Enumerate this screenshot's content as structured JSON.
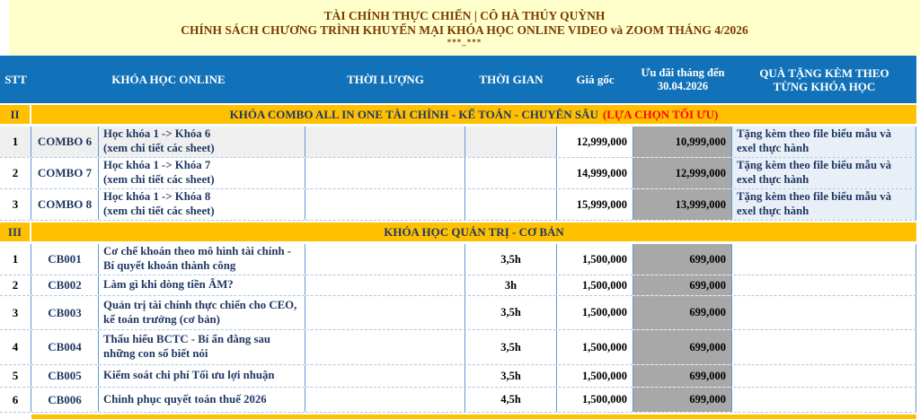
{
  "colors": {
    "band_cream": "#FFFFCC",
    "title_maroon": "#7C3A00",
    "header_blue": "#1172B9",
    "section_orange": "#FFC000",
    "discount_gray": "#A8A8A8",
    "navy_text": "#1F3864",
    "red_highlight": "#FF0000",
    "stripe_gray": "#EFEFEF",
    "gift_blue": "#E9EFF7",
    "grid_blue": "#5B9BD5"
  },
  "band": {
    "line1": "TÀI CHÍNH THỰC CHIẾN | CÔ HÀ THÚY QUỲNH",
    "line2": "CHÍNH SÁCH CHƯƠNG TRÌNH KHUYẾN MẠI KHÓA HỌC ONLINE VIDEO và ZOOM THÁNG 4/2026",
    "line3": "***_***"
  },
  "table": {
    "columns": {
      "stt": "STT",
      "khoa_hoc_online": "KHÓA HỌC ONLINE",
      "thoi_luong": "THỜI LƯỢNG",
      "thoi_gian": "THỜI GIAN",
      "gia_goc": "Giá gốc",
      "uu_dai_line1": "Ưu đãi tháng đến",
      "uu_dai_line2": "30.04.2026",
      "qua_tang_line1": "QUÀ TẶNG KÈM THEO",
      "qua_tang_line2": "TỪNG KHÓA HỌC"
    },
    "section_combo": {
      "stt": "II",
      "title": "KHÓA COMBO ALL IN ONE TÀI CHÍNH - KẾ TOÁN - CHUYÊN SÂU",
      "highlight": "(LỰA CHỌN TỐI ƯU)",
      "rows": [
        {
          "stt": "1",
          "code": "COMBO 6",
          "desc1": "Học khóa 1 -> Khóa 6",
          "desc2": "(xem chi tiết các sheet)",
          "gia_goc": "12,999,000",
          "uu_dai": "10,999,000",
          "gift": "Tặng kèm theo file biểu mẫu và exel thực hành"
        },
        {
          "stt": "2",
          "code": "COMBO 7",
          "desc1": "Học khóa 1 -> Khóa 7",
          "desc2": "(xem chi tiết các sheet)",
          "gia_goc": "14,999,000",
          "uu_dai": "12,999,000",
          "gift": "Tặng kèm theo file biểu mẫu và exel thực hành"
        },
        {
          "stt": "3",
          "code": "COMBO 8",
          "desc1": "Học khóa 1 -> Khóa 8",
          "desc2": "(xem chi tiết các sheet)",
          "gia_goc": "15,999,000",
          "uu_dai": "13,999,000",
          "gift": "Tặng kèm theo file biểu mẫu và exel thực hành"
        }
      ]
    },
    "section_coban": {
      "stt": "III",
      "title": "KHÓA HỌC QUẢN TRỊ - CƠ BẢN",
      "rows": [
        {
          "stt": "1",
          "code": "CB001",
          "desc": "Cơ chế khoán theo mô hình tài chính - Bí quyết khoán thành công",
          "thoi_gian": "3,5h",
          "gia_goc": "1,500,000",
          "uu_dai": "699,000"
        },
        {
          "stt": "2",
          "code": "CB002",
          "desc": "Làm gì khi dòng tiền ÂM?",
          "thoi_gian": "3h",
          "gia_goc": "1,500,000",
          "uu_dai": "699,000"
        },
        {
          "stt": "3",
          "code": "CB003",
          "desc": "Quản trị tài chính thực chiến cho CEO, kế toán trưởng (cơ bản)",
          "thoi_gian": "3,5h",
          "gia_goc": "1,500,000",
          "uu_dai": "699,000"
        },
        {
          "stt": "4",
          "code": "CB004",
          "desc": "Thấu hiểu BCTC - Bí ẩn đằng sau những con số biết nói",
          "thoi_gian": "3,5h",
          "gia_goc": "1,500,000",
          "uu_dai": "699,000"
        },
        {
          "stt": "5",
          "code": "CB005",
          "desc": "Kiểm soát chi phí Tối ưu lợi nhuận",
          "thoi_gian": "3,5h",
          "gia_goc": "1,500,000",
          "uu_dai": "699,000"
        },
        {
          "stt": "6",
          "code": "CB006",
          "desc": "Chinh phục quyết toán thuế 2026",
          "thoi_gian": "4,5h",
          "gia_goc": "1,500,000",
          "uu_dai": "699,000"
        }
      ]
    }
  }
}
